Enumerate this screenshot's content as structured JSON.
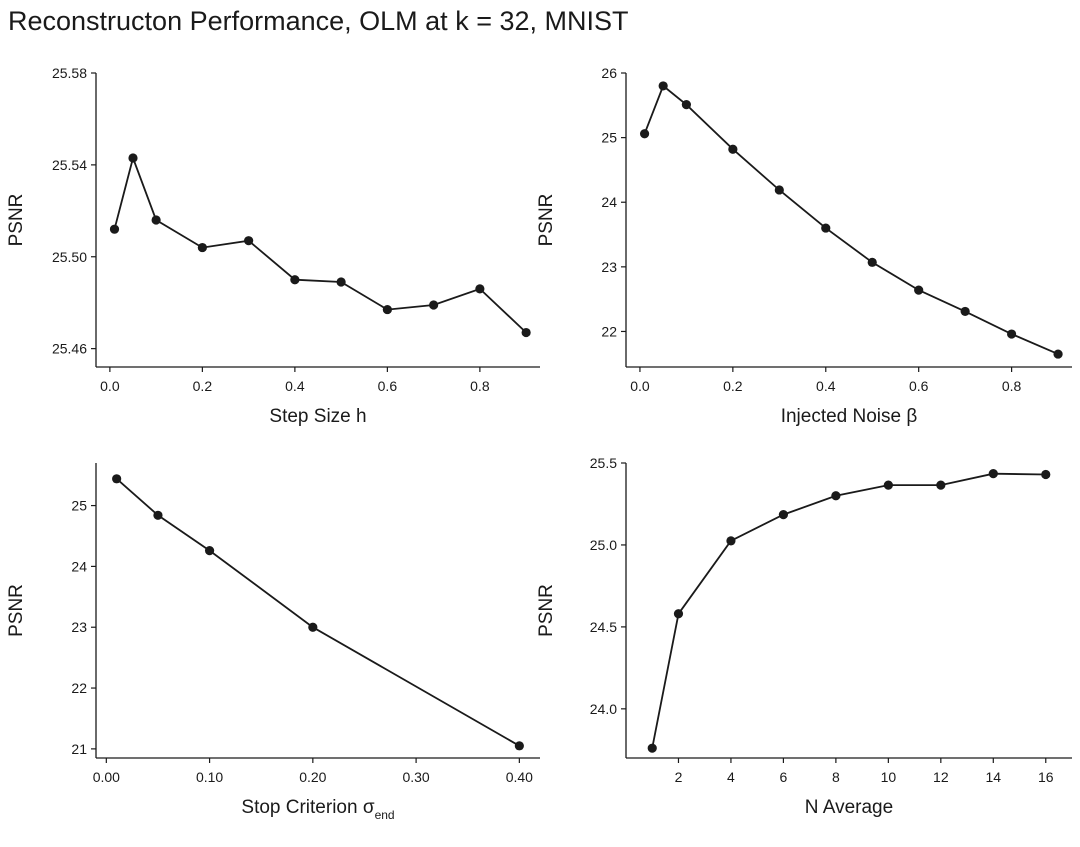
{
  "figure_title": "Reconstructon Performance, OLM at k = 32, MNIST",
  "chart_data": [
    {
      "type": "line",
      "title": "",
      "xlabel": "Step Size h",
      "ylabel": "PSNR",
      "x": [
        0.01,
        0.05,
        0.1,
        0.2,
        0.3,
        0.4,
        0.5,
        0.6,
        0.7,
        0.8,
        0.9
      ],
      "y": [
        25.512,
        25.543,
        25.516,
        25.504,
        25.507,
        25.49,
        25.489,
        25.477,
        25.479,
        25.486,
        25.467
      ],
      "xlim": [
        -0.03,
        0.93
      ],
      "ylim": [
        25.452,
        25.58
      ],
      "xticks": [
        0.0,
        0.2,
        0.4,
        0.6,
        0.8
      ],
      "xticklabels": [
        "0.0",
        "0.2",
        "0.4",
        "0.6",
        "0.8"
      ],
      "yticks": [
        25.46,
        25.5,
        25.54,
        25.58
      ],
      "yticklabels": [
        "25.46",
        "25.50",
        "25.54",
        "25.58"
      ],
      "grid": false
    },
    {
      "type": "line",
      "title": "",
      "xlabel": "Injected Noise β",
      "ylabel": "PSNR",
      "x": [
        0.01,
        0.05,
        0.1,
        0.2,
        0.3,
        0.4,
        0.5,
        0.6,
        0.7,
        0.8,
        0.9
      ],
      "y": [
        25.06,
        25.8,
        25.51,
        24.82,
        24.19,
        23.6,
        23.07,
        22.64,
        22.31,
        21.96,
        21.65
      ],
      "xlim": [
        -0.03,
        0.93
      ],
      "ylim": [
        21.45,
        26.0
      ],
      "xticks": [
        0.0,
        0.2,
        0.4,
        0.6,
        0.8
      ],
      "xticklabels": [
        "0.0",
        "0.2",
        "0.4",
        "0.6",
        "0.8"
      ],
      "yticks": [
        22,
        23,
        24,
        25,
        26
      ],
      "yticklabels": [
        "22",
        "23",
        "24",
        "25",
        "26"
      ],
      "grid": false
    },
    {
      "type": "line",
      "title": "",
      "xlabel": "Stop Criterion σ",
      "xlabel_subscript": "end",
      "ylabel": "PSNR",
      "x": [
        0.01,
        0.05,
        0.1,
        0.2,
        0.4
      ],
      "y": [
        25.44,
        24.84,
        24.26,
        23.0,
        21.05
      ],
      "xlim": [
        -0.01,
        0.42
      ],
      "ylim": [
        20.85,
        25.7
      ],
      "xticks": [
        0.0,
        0.1,
        0.2,
        0.3,
        0.4
      ],
      "xticklabels": [
        "0.00",
        "0.10",
        "0.20",
        "0.30",
        "0.40"
      ],
      "yticks": [
        21,
        22,
        23,
        24,
        25
      ],
      "yticklabels": [
        "21",
        "22",
        "23",
        "24",
        "25"
      ],
      "grid": false
    },
    {
      "type": "line",
      "title": "",
      "xlabel": "N Average",
      "ylabel": "PSNR",
      "x": [
        1,
        2,
        4,
        6,
        8,
        10,
        12,
        14,
        16
      ],
      "y": [
        23.76,
        24.58,
        25.025,
        25.185,
        25.3,
        25.365,
        25.365,
        25.435,
        25.43
      ],
      "xlim": [
        0.0,
        17.0
      ],
      "ylim": [
        23.7,
        25.5
      ],
      "xticks": [
        2,
        4,
        6,
        8,
        10,
        12,
        14,
        16
      ],
      "xticklabels": [
        "2",
        "4",
        "6",
        "8",
        "10",
        "12",
        "14",
        "16"
      ],
      "yticks": [
        24.0,
        24.5,
        25.0,
        25.5
      ],
      "yticklabels": [
        "24.0",
        "24.5",
        "25.0",
        "25.5"
      ],
      "grid": false
    }
  ]
}
